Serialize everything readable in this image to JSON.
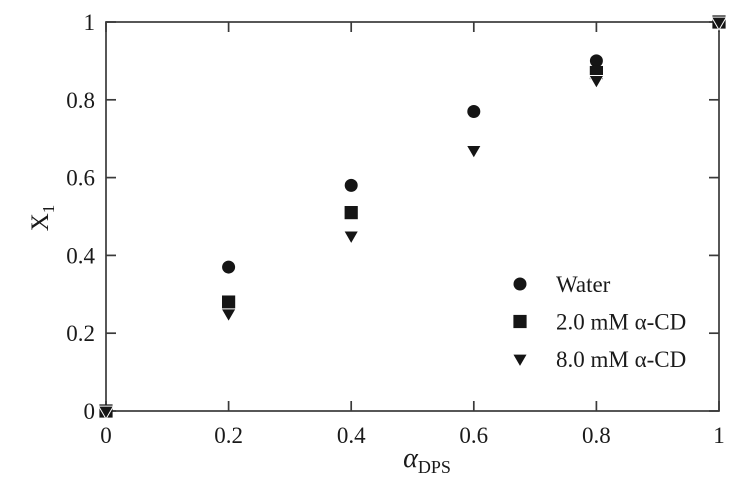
{
  "figure": {
    "background": "#ffffff",
    "frame_color": "#3a3a3a",
    "text_color": "#1a1a1a",
    "marker_color": "#151515"
  },
  "chart_data": {
    "type": "scatter",
    "title": "",
    "xlabel": {
      "text": "α",
      "subscript": "DPS"
    },
    "ylabel": {
      "text": "X",
      "subscript": "1"
    },
    "xlim": [
      0,
      1
    ],
    "ylim": [
      0,
      1
    ],
    "xticks": [
      0,
      0.2,
      0.4,
      0.6,
      0.8,
      1
    ],
    "yticks": [
      0,
      0.2,
      0.4,
      0.6,
      0.8,
      1
    ],
    "xtick_labels": [
      "0",
      "0.2",
      "0.4",
      "0.6",
      "0.8",
      "1"
    ],
    "ytick_labels": [
      "0",
      "0.2",
      "0.4",
      "0.6",
      "0.8",
      "1"
    ],
    "grid": false,
    "legend_position": "inside-bottom-right",
    "series": [
      {
        "name": "Water",
        "marker": "circle",
        "points": [
          [
            0,
            0.0
          ],
          [
            0.2,
            0.37
          ],
          [
            0.4,
            0.58
          ],
          [
            0.6,
            0.77
          ],
          [
            0.8,
            0.9
          ],
          [
            1,
            1.0
          ]
        ]
      },
      {
        "name": "2.0 mM α-CD",
        "marker": "square",
        "points": [
          [
            0,
            0.0
          ],
          [
            0.2,
            0.28
          ],
          [
            0.4,
            0.51
          ],
          [
            0.8,
            0.87
          ],
          [
            1,
            1.0
          ]
        ]
      },
      {
        "name": "8.0 mM α-CD",
        "marker": "triangle-down",
        "points": [
          [
            0,
            0.0
          ],
          [
            0.2,
            0.25
          ],
          [
            0.4,
            0.45
          ],
          [
            0.6,
            0.67
          ],
          [
            0.8,
            0.85
          ],
          [
            1,
            1.0
          ]
        ]
      }
    ]
  }
}
